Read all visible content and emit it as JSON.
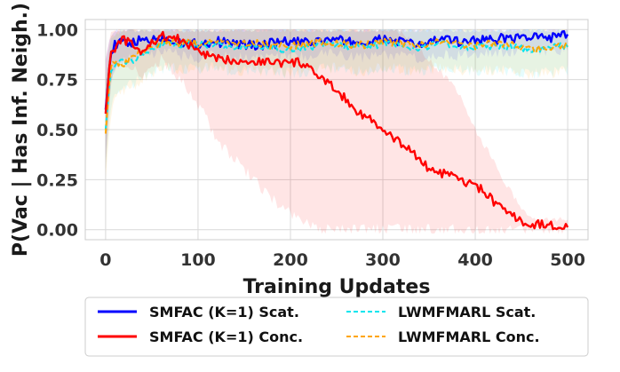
{
  "chart_data": {
    "type": "line",
    "title": "",
    "xlabel": "Training Updates",
    "ylabel": "P(Vac | Has Inf. Neigh.)",
    "xlim": [
      -22,
      522
    ],
    "ylim": [
      -0.05,
      1.05
    ],
    "xticks": [
      0,
      100,
      200,
      300,
      400,
      500
    ],
    "yticks": [
      0.0,
      0.25,
      0.5,
      0.75,
      1.0
    ],
    "xtick_labels": [
      "0",
      "100",
      "200",
      "300",
      "400",
      "500"
    ],
    "ytick_labels": [
      "0.00",
      "0.25",
      "0.50",
      "0.75",
      "1.00"
    ],
    "grid": true,
    "legend_position": "below",
    "series": [
      {
        "name": "SMFAC (K=1) Scat.",
        "color": "#0000ff",
        "style": "solid",
        "x": [
          0,
          5,
          10,
          20,
          30,
          40,
          50,
          60,
          70,
          80,
          90,
          100,
          120,
          140,
          160,
          180,
          200,
          220,
          240,
          260,
          280,
          300,
          320,
          340,
          360,
          380,
          400,
          420,
          440,
          460,
          480,
          500
        ],
        "values": [
          0.6,
          0.86,
          0.92,
          0.94,
          0.93,
          0.95,
          0.95,
          0.96,
          0.95,
          0.94,
          0.93,
          0.93,
          0.94,
          0.93,
          0.92,
          0.93,
          0.94,
          0.93,
          0.95,
          0.94,
          0.93,
          0.95,
          0.94,
          0.92,
          0.95,
          0.94,
          0.95,
          0.95,
          0.96,
          0.96,
          0.96,
          0.97
        ],
        "band_low": [
          0.35,
          0.7,
          0.8,
          0.85,
          0.85,
          0.87,
          0.88,
          0.89,
          0.88,
          0.87,
          0.86,
          0.86,
          0.87,
          0.86,
          0.85,
          0.86,
          0.87,
          0.86,
          0.88,
          0.87,
          0.86,
          0.88,
          0.87,
          0.85,
          0.88,
          0.87,
          0.88,
          0.88,
          0.89,
          0.89,
          0.89,
          0.9
        ],
        "band_high": [
          0.85,
          0.97,
          1.0,
          1.0,
          1.0,
          1.0,
          1.0,
          1.0,
          1.0,
          1.0,
          1.0,
          1.0,
          1.0,
          1.0,
          1.0,
          1.0,
          1.0,
          1.0,
          1.0,
          1.0,
          1.0,
          1.0,
          1.0,
          1.0,
          1.0,
          1.0,
          1.0,
          1.0,
          1.0,
          1.0,
          1.0,
          1.0
        ]
      },
      {
        "name": "SMFAC (K=1) Conc.",
        "color": "#ff0000",
        "style": "solid",
        "x": [
          0,
          5,
          10,
          20,
          30,
          40,
          50,
          60,
          70,
          80,
          90,
          100,
          110,
          120,
          140,
          160,
          180,
          200,
          210,
          220,
          230,
          240,
          250,
          260,
          270,
          280,
          290,
          300,
          310,
          320,
          330,
          340,
          350,
          360,
          370,
          380,
          390,
          400,
          410,
          420,
          430,
          440,
          450,
          460,
          470,
          480,
          490,
          500
        ],
        "values": [
          0.58,
          0.87,
          0.91,
          0.95,
          0.92,
          0.88,
          0.93,
          0.97,
          0.96,
          0.95,
          0.92,
          0.9,
          0.87,
          0.85,
          0.85,
          0.84,
          0.84,
          0.83,
          0.84,
          0.8,
          0.77,
          0.73,
          0.7,
          0.65,
          0.6,
          0.57,
          0.54,
          0.49,
          0.46,
          0.43,
          0.4,
          0.35,
          0.3,
          0.29,
          0.27,
          0.26,
          0.23,
          0.22,
          0.19,
          0.14,
          0.1,
          0.07,
          0.04,
          0.02,
          0.03,
          0.02,
          0.02,
          0.02
        ],
        "band_low": [
          0.3,
          0.7,
          0.8,
          0.85,
          0.8,
          0.75,
          0.8,
          0.85,
          0.8,
          0.75,
          0.7,
          0.62,
          0.55,
          0.45,
          0.35,
          0.25,
          0.15,
          0.08,
          0.05,
          0.02,
          0.0,
          0.0,
          0.0,
          0.0,
          0.0,
          0.0,
          0.0,
          0.0,
          0.0,
          0.0,
          0.0,
          0.0,
          0.0,
          0.0,
          0.0,
          0.0,
          0.0,
          0.0,
          0.0,
          0.0,
          0.0,
          0.0,
          0.0,
          0.0,
          0.0,
          0.0,
          0.0,
          0.0
        ],
        "band_high": [
          0.85,
          0.97,
          1.0,
          1.0,
          1.0,
          1.0,
          1.0,
          1.0,
          1.0,
          1.0,
          1.0,
          1.0,
          1.0,
          1.0,
          1.0,
          1.0,
          1.0,
          1.0,
          1.0,
          1.0,
          1.0,
          1.0,
          1.0,
          1.0,
          1.0,
          1.0,
          1.0,
          1.0,
          1.0,
          0.98,
          0.95,
          0.9,
          0.85,
          0.8,
          0.75,
          0.7,
          0.6,
          0.5,
          0.42,
          0.35,
          0.25,
          0.18,
          0.1,
          0.06,
          0.06,
          0.05,
          0.05,
          0.05
        ]
      },
      {
        "name": "LWMFMARL Scat.",
        "color": "#00e5ee",
        "style": "dashed",
        "x": [
          0,
          5,
          10,
          20,
          30,
          40,
          50,
          60,
          70,
          80,
          90,
          100,
          120,
          140,
          160,
          180,
          200,
          220,
          240,
          260,
          280,
          300,
          320,
          340,
          360,
          380,
          400,
          420,
          440,
          460,
          480,
          500
        ],
        "values": [
          0.5,
          0.78,
          0.82,
          0.84,
          0.85,
          0.88,
          0.9,
          0.92,
          0.93,
          0.92,
          0.93,
          0.92,
          0.93,
          0.91,
          0.92,
          0.91,
          0.9,
          0.91,
          0.93,
          0.92,
          0.91,
          0.93,
          0.92,
          0.91,
          0.93,
          0.92,
          0.91,
          0.92,
          0.91,
          0.9,
          0.91,
          0.92
        ],
        "band_low": [
          0.3,
          0.6,
          0.7,
          0.72,
          0.73,
          0.76,
          0.78,
          0.8,
          0.81,
          0.8,
          0.81,
          0.8,
          0.81,
          0.79,
          0.8,
          0.79,
          0.78,
          0.79,
          0.81,
          0.8,
          0.79,
          0.81,
          0.8,
          0.79,
          0.81,
          0.8,
          0.79,
          0.8,
          0.79,
          0.78,
          0.79,
          0.8
        ],
        "band_high": [
          0.75,
          0.95,
          0.98,
          1.0,
          1.0,
          1.0,
          1.0,
          1.0,
          1.0,
          1.0,
          1.0,
          1.0,
          1.0,
          1.0,
          1.0,
          1.0,
          1.0,
          1.0,
          1.0,
          1.0,
          1.0,
          1.0,
          1.0,
          1.0,
          1.0,
          1.0,
          1.0,
          1.0,
          1.0,
          1.0,
          1.0,
          1.0
        ]
      },
      {
        "name": "LWMFMARL Conc.",
        "color": "#ffa500",
        "style": "dashed",
        "x": [
          0,
          5,
          10,
          20,
          30,
          40,
          50,
          60,
          70,
          80,
          90,
          100,
          120,
          140,
          160,
          180,
          200,
          220,
          240,
          260,
          280,
          300,
          320,
          340,
          360,
          380,
          400,
          420,
          440,
          460,
          480,
          500
        ],
        "values": [
          0.48,
          0.8,
          0.84,
          0.83,
          0.86,
          0.9,
          0.92,
          0.93,
          0.94,
          0.93,
          0.94,
          0.93,
          0.94,
          0.92,
          0.93,
          0.92,
          0.92,
          0.93,
          0.94,
          0.93,
          0.92,
          0.94,
          0.93,
          0.92,
          0.94,
          0.93,
          0.92,
          0.93,
          0.92,
          0.9,
          0.91,
          0.93
        ],
        "band_low": [
          0.25,
          0.55,
          0.68,
          0.7,
          0.72,
          0.76,
          0.78,
          0.8,
          0.81,
          0.8,
          0.81,
          0.8,
          0.81,
          0.79,
          0.8,
          0.79,
          0.79,
          0.8,
          0.81,
          0.8,
          0.79,
          0.81,
          0.8,
          0.79,
          0.81,
          0.8,
          0.79,
          0.8,
          0.79,
          0.77,
          0.78,
          0.8
        ],
        "band_high": [
          0.75,
          0.95,
          0.98,
          1.0,
          1.0,
          1.0,
          1.0,
          1.0,
          1.0,
          1.0,
          1.0,
          1.0,
          1.0,
          1.0,
          1.0,
          1.0,
          1.0,
          1.0,
          1.0,
          1.0,
          1.0,
          1.0,
          1.0,
          1.0,
          1.0,
          1.0,
          1.0,
          1.0,
          1.0,
          1.0,
          1.0,
          1.0
        ]
      }
    ]
  },
  "legend": {
    "items": [
      {
        "label": "SMFAC (K=1) Scat.",
        "color": "#0000ff",
        "style": "solid"
      },
      {
        "label": "LWMFMARL Scat.",
        "color": "#00e5ee",
        "style": "dashed"
      },
      {
        "label": "SMFAC (K=1) Conc.",
        "color": "#ff0000",
        "style": "solid"
      },
      {
        "label": "LWMFMARL Conc.",
        "color": "#ffa500",
        "style": "dashed"
      }
    ]
  },
  "colors": {
    "grid": "#d9d9d9",
    "axes_edge": "#cccccc",
    "background": "#ffffff"
  }
}
